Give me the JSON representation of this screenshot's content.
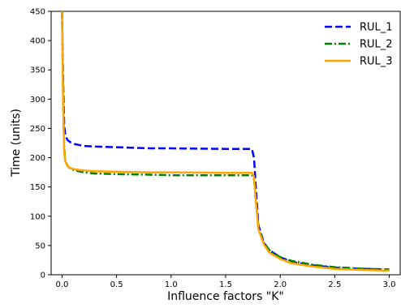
{
  "chart_data": {
    "type": "line",
    "xlabel": "Influence factors \"K\"",
    "ylabel": "Time (units)",
    "xlim": [
      -0.1,
      3.1
    ],
    "ylim": [
      0,
      450
    ],
    "x_ticks": [
      0.0,
      0.5,
      1.0,
      1.5,
      2.0,
      2.5,
      3.0
    ],
    "x_tick_labels": [
      "0.0",
      "0.5",
      "1.0",
      "1.5",
      "2.0",
      "2.5",
      "3.0"
    ],
    "y_ticks": [
      0,
      50,
      100,
      150,
      200,
      250,
      300,
      350,
      400,
      450
    ],
    "y_tick_labels": [
      "0",
      "50",
      "100",
      "150",
      "200",
      "250",
      "300",
      "350",
      "400",
      "450"
    ],
    "grid": false,
    "legend_position": "top-right",
    "series": [
      {
        "name": "RUL_1",
        "color": "#0000ff",
        "style": "dashed",
        "x": [
          0.0,
          0.01,
          0.02,
          0.03,
          0.05,
          0.08,
          0.12,
          0.2,
          0.3,
          0.5,
          0.8,
          1.0,
          1.5,
          1.74,
          1.76,
          1.78,
          1.8,
          1.85,
          1.9,
          2.0,
          2.1,
          2.3,
          2.5,
          2.8,
          3.0
        ],
        "values": [
          450,
          330,
          255,
          238,
          230,
          226,
          223,
          220,
          219,
          218,
          216,
          216,
          215,
          215,
          200,
          140,
          85,
          55,
          42,
          30,
          22,
          16,
          12,
          10,
          9
        ]
      },
      {
        "name": "RUL_2",
        "color": "#008000",
        "style": "dashdot",
        "x": [
          0.0,
          0.01,
          0.02,
          0.03,
          0.05,
          0.08,
          0.12,
          0.2,
          0.3,
          0.5,
          0.8,
          1.0,
          1.5,
          1.74,
          1.76,
          1.78,
          1.8,
          1.85,
          1.9,
          2.0,
          2.1,
          2.3,
          2.5,
          2.8,
          3.0
        ],
        "values": [
          450,
          300,
          215,
          195,
          186,
          181,
          178,
          175,
          173,
          172,
          171,
          170,
          170,
          170,
          165,
          120,
          80,
          55,
          42,
          30,
          24,
          17,
          13,
          10,
          9
        ]
      },
      {
        "name": "RUL_3",
        "color": "#ffa500",
        "style": "solid",
        "x": [
          0.0,
          0.01,
          0.02,
          0.03,
          0.05,
          0.08,
          0.12,
          0.2,
          0.3,
          0.5,
          0.8,
          1.0,
          1.5,
          1.74,
          1.76,
          1.78,
          1.8,
          1.85,
          1.9,
          2.0,
          2.1,
          2.3,
          2.5,
          2.8,
          3.0
        ],
        "values": [
          450,
          290,
          210,
          193,
          186,
          182,
          180,
          178,
          177,
          176,
          175,
          175,
          174,
          174,
          168,
          120,
          78,
          52,
          38,
          27,
          20,
          14,
          10,
          8,
          7
        ]
      }
    ]
  }
}
